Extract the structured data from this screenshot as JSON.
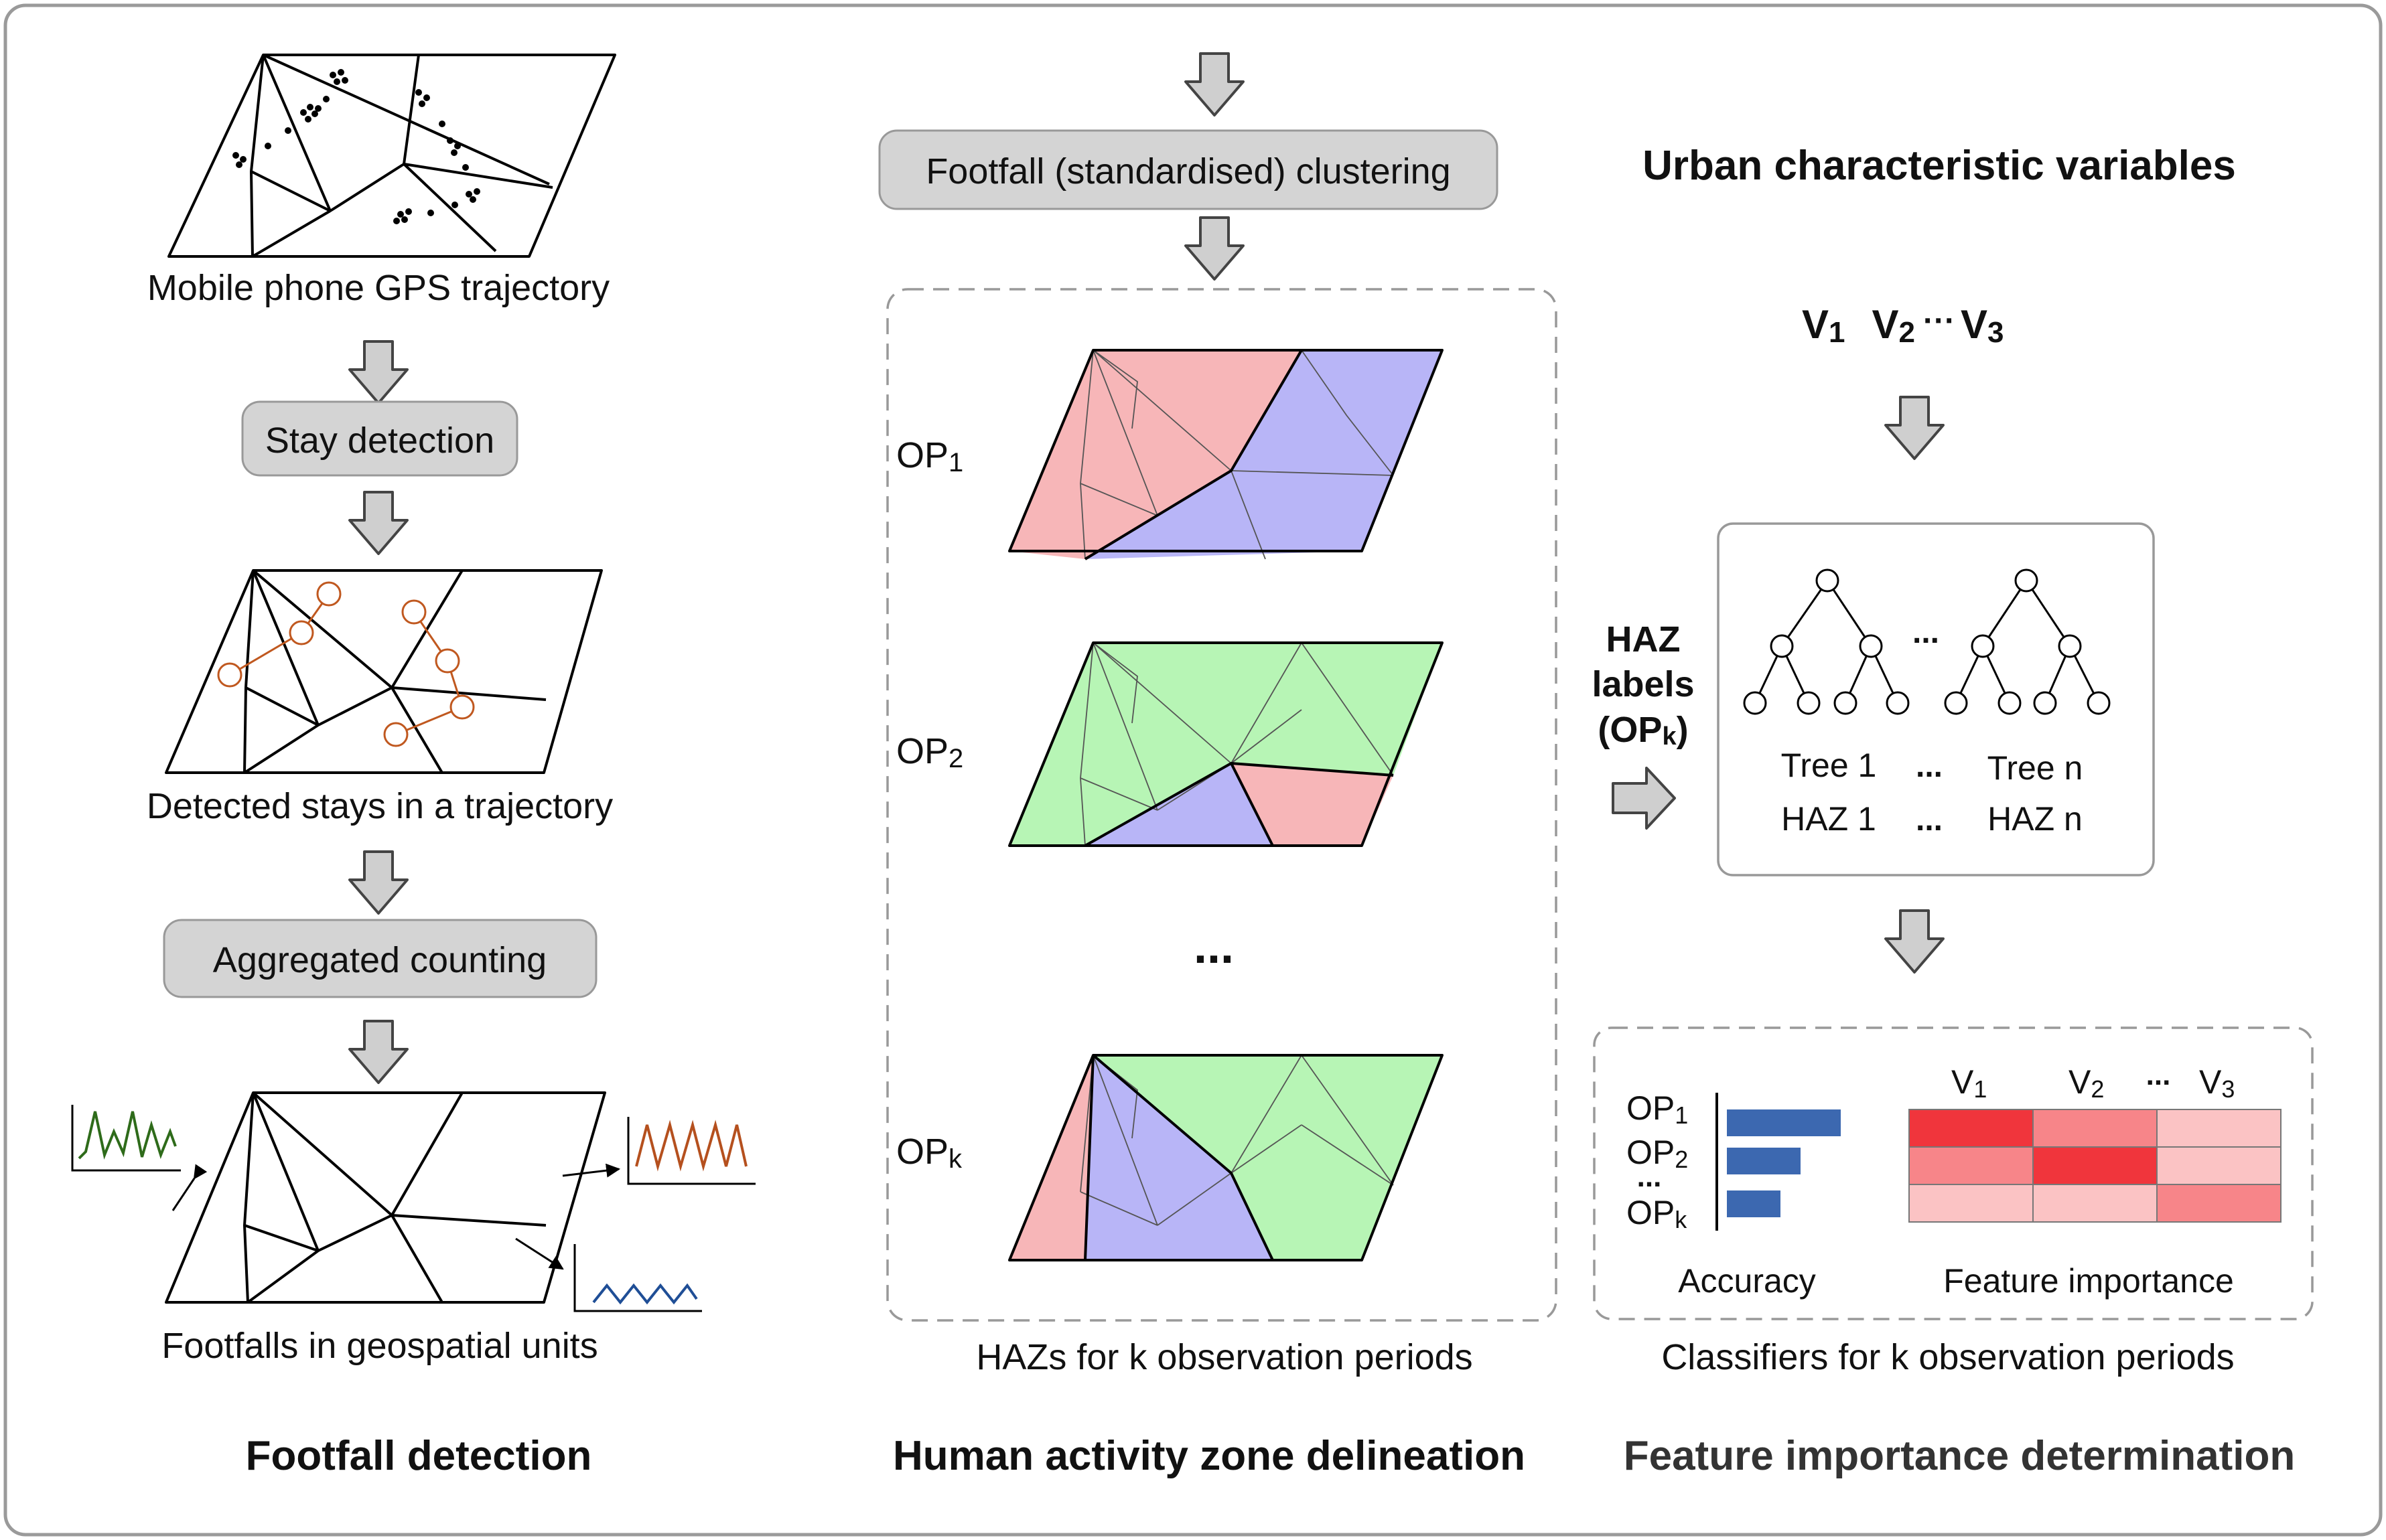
{
  "footfall": {
    "gps_label": "Mobile phone GPS trajectory",
    "stay_detection": "Stay detection",
    "stays_label": "Detected stays in a trajectory",
    "aggregated_counting": "Aggregated counting",
    "footfalls_label": "Footfalls in geospatial units",
    "section_title": "Footfall detection",
    "series_colors": [
      "#2e6b1a",
      "#b5501e",
      "#1f4e96"
    ]
  },
  "haz": {
    "clustering_label": "Footfall (standardised) clustering",
    "op_labels": [
      {
        "base": "OP",
        "sub": "1"
      },
      {
        "base": "OP",
        "sub": "2"
      },
      {
        "base": "OP",
        "sub": "k"
      }
    ],
    "ellipsis": "...",
    "caption": "HAZs for k observation periods",
    "section_title": "Human activity zone delineation",
    "zone_colors": {
      "pink": "#f7b6b8",
      "blue": "#b8b5f7",
      "green": "#b7f5b5"
    }
  },
  "feature": {
    "heading": "Urban characteristic variables",
    "variables": [
      {
        "base": "V",
        "sub": "1"
      },
      {
        "base": "V",
        "sub": "2"
      },
      {
        "base": "V",
        "sub": "3"
      }
    ],
    "var_ellipsis": "···",
    "haz_labels": {
      "line1": "HAZ",
      "line2": "labels",
      "line3_base": "(OP",
      "line3_sub": "k",
      "line3_end": ")"
    },
    "tree_labels": {
      "tree1": "Tree 1",
      "treen": "Tree n",
      "haz1": "HAZ 1",
      "hazn": "HAZ n",
      "dots": "..."
    },
    "results": {
      "op_rows": [
        {
          "base": "OP",
          "sub": "1"
        },
        {
          "base": "OP",
          "sub": "2"
        },
        {
          "base": "OP",
          "sub": "k"
        }
      ],
      "row_dots": "...",
      "accuracy_label": "Accuracy",
      "accuracy_values": [
        0.85,
        0.55,
        0.4
      ],
      "importance_columns": [
        {
          "base": "V",
          "sub": "1"
        },
        {
          "base": "V",
          "sub": "2"
        },
        {
          "base": "V",
          "sub": "3"
        }
      ],
      "col_dots": "...",
      "importance_label": "Feature importance",
      "importance_colors": [
        [
          "#f0353c",
          "#f78589",
          "#fbc3c4"
        ],
        [
          "#f78589",
          "#f0353c",
          "#fbc3c4"
        ],
        [
          "#fbc3c4",
          "#fbc3c4",
          "#f78589"
        ]
      ],
      "bar_color": "#3c68b0"
    },
    "caption": "Classifiers for k observation periods",
    "section_title": "Feature importance determination"
  }
}
